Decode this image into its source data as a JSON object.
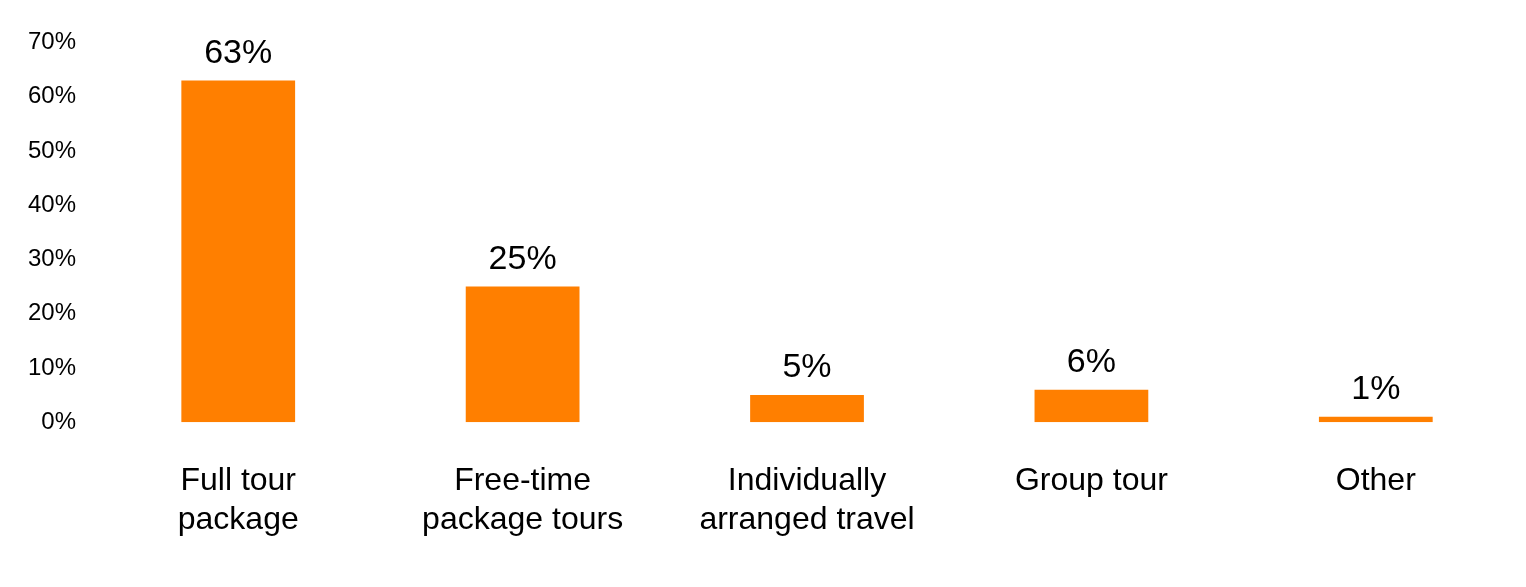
{
  "chart_data": {
    "type": "bar",
    "categories": [
      "Full tour package",
      "Free-time package tours",
      "Individually arranged travel",
      "Group tour",
      "Other"
    ],
    "values": [
      63,
      25,
      5,
      6,
      1
    ],
    "value_labels": [
      "63%",
      "25%",
      "5%",
      "6%",
      "1%"
    ],
    "color": "#ff7f00",
    "ylim": [
      0,
      70
    ],
    "yticks": [
      {
        "value": 0,
        "label": "0%"
      },
      {
        "value": 10,
        "label": "10%"
      },
      {
        "value": 20,
        "label": "20%"
      },
      {
        "value": 30,
        "label": "30%"
      },
      {
        "value": 40,
        "label": "40%"
      },
      {
        "value": 50,
        "label": "50%"
      },
      {
        "value": 60,
        "label": "60%"
      },
      {
        "value": 70,
        "label": "70%"
      }
    ],
    "grid": false,
    "legend": false
  }
}
